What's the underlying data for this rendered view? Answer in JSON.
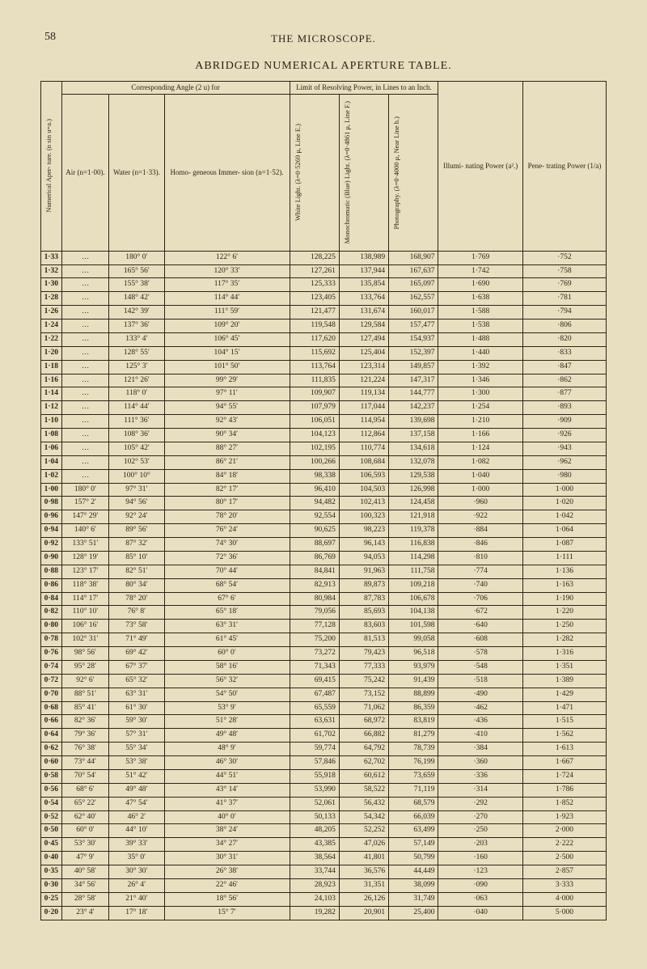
{
  "page_number": "58",
  "running_head": "THE MICROSCOPE.",
  "table_title": "ABRIDGED NUMERICAL APERTURE TABLE.",
  "headers": {
    "group_corr": "Corresponding Angle (2 u) for",
    "group_limit": "Limit of Resolving Power, in Lines to an Inch.",
    "numerical_aperture": "Numerical Aper-\nture. (n sin u=a.)",
    "air": "Air\n(n=1·00).",
    "water": "Water\n(n=1·33).",
    "homo": "Homo-\ngeneous\nImmer-\nsion\n(n=1·52).",
    "white": "White Light.\n(λ=0·5269 μ,\nLine E.)",
    "mono": "Monochromatic\n(Blue) Light.\n(λ=0·4861 μ,\nLine F.)",
    "photo": "Photography.\n(λ=0·4000 μ,\nNear Line h.)",
    "illum": "Illumi-\nnating\nPower\n(a².)",
    "pene": "Pene-\ntrating\nPower\n(1/a)"
  },
  "rows": [
    [
      "1·33",
      "…",
      "180° 0′",
      "122° 6′",
      "128,225",
      "138,989",
      "168,907",
      "1·769",
      "·752"
    ],
    [
      "1·32",
      "…",
      "165° 56′",
      "120° 33′",
      "127,261",
      "137,944",
      "167,637",
      "1·742",
      "·758"
    ],
    [
      "1·30",
      "…",
      "155° 38′",
      "117° 35′",
      "125,333",
      "135,854",
      "165,097",
      "1·690",
      "·769"
    ],
    [
      "1·28",
      "…",
      "148° 42′",
      "114° 44′",
      "123,405",
      "133,764",
      "162,557",
      "1·638",
      "·781"
    ],
    [
      "1·26",
      "…",
      "142° 39′",
      "111° 59′",
      "121,477",
      "131,674",
      "160,017",
      "1·588",
      "·794"
    ],
    [
      "1·24",
      "…",
      "137° 36′",
      "109° 20′",
      "119,548",
      "129,584",
      "157,477",
      "1·538",
      "·806"
    ],
    [
      "1·22",
      "…",
      "133° 4′",
      "106° 45′",
      "117,620",
      "127,494",
      "154,937",
      "1·488",
      "·820"
    ],
    [
      "1·20",
      "…",
      "128° 55′",
      "104° 15′",
      "115,692",
      "125,404",
      "152,397",
      "1·440",
      "·833"
    ],
    [
      "1·18",
      "…",
      "125° 3′",
      "101° 50′",
      "113,764",
      "123,314",
      "149,857",
      "1·392",
      "·847"
    ],
    [
      "1·16",
      "…",
      "121° 26′",
      "99° 29′",
      "111,835",
      "121,224",
      "147,317",
      "1·346",
      "·862"
    ],
    [
      "1·14",
      "…",
      "118° 0′",
      "97° 11′",
      "109,907",
      "119,134",
      "144,777",
      "1·300",
      "·877"
    ],
    [
      "1·12",
      "…",
      "114° 44′",
      "94° 55′",
      "107,979",
      "117,044",
      "142,237",
      "1·254",
      "·893"
    ],
    [
      "1·10",
      "…",
      "111° 36′",
      "92° 43′",
      "106,051",
      "114,954",
      "139,698",
      "1·210",
      "·909"
    ],
    [
      "1·08",
      "…",
      "108° 36′",
      "90° 34′",
      "104,123",
      "112,864",
      "137,158",
      "1·166",
      "·926"
    ],
    [
      "1·06",
      "…",
      "105° 42′",
      "88° 27′",
      "102,195",
      "110,774",
      "134,618",
      "1·124",
      "·943"
    ],
    [
      "1·04",
      "…",
      "102° 53′",
      "86° 21′",
      "100,266",
      "108,684",
      "132,078",
      "1·082",
      "·962"
    ],
    [
      "1·02",
      "…",
      "100° 10°",
      "84° 18′",
      "98,338",
      "106,593",
      "129,538",
      "1·040",
      "·980"
    ],
    [
      "1·00",
      "180° 0′",
      "97° 31′",
      "82° 17′",
      "96,410",
      "104,503",
      "126,998",
      "1·000",
      "1·000"
    ],
    [
      "0·98",
      "157° 2′",
      "94° 56′",
      "80° 17′",
      "94,482",
      "102,413",
      "124,458",
      "·960",
      "1·020"
    ],
    [
      "0·96",
      "147° 29′",
      "92° 24′",
      "78° 20′",
      "92,554",
      "100,323",
      "121,918",
      "·922",
      "1·042"
    ],
    [
      "0·94",
      "140° 6′",
      "89° 56′",
      "76° 24′",
      "90,625",
      "98,223",
      "119,378",
      "·884",
      "1·064"
    ],
    [
      "0·92",
      "133° 51′",
      "87° 32′",
      "74° 30′",
      "88,697",
      "96,143",
      "116,838",
      "·846",
      "1·087"
    ],
    [
      "0·90",
      "128° 19′",
      "85° 10′",
      "72° 36′",
      "86,769",
      "94,053",
      "114,298",
      "·810",
      "1·111"
    ],
    [
      "0·88",
      "123° 17′",
      "82° 51′",
      "70° 44′",
      "84,841",
      "91,963",
      "111,758",
      "·774",
      "1·136"
    ],
    [
      "0·86",
      "118° 38′",
      "80° 34′",
      "68° 54′",
      "82,913",
      "89,873",
      "109,218",
      "·740",
      "1·163"
    ],
    [
      "0·84",
      "114° 17′",
      "78° 20′",
      "67° 6′",
      "80,984",
      "87,783",
      "106,678",
      "·706",
      "1·190"
    ],
    [
      "0·82",
      "110° 10′",
      "76° 8′",
      "65° 18′",
      "79,056",
      "85,693",
      "104,138",
      "·672",
      "1·220"
    ],
    [
      "0·80",
      "106° 16′",
      "73° 58′",
      "63° 31′",
      "77,128",
      "83,603",
      "101,598",
      "·640",
      "1·250"
    ],
    [
      "0·78",
      "102° 31′",
      "71° 49′",
      "61° 45′",
      "75,200",
      "81,513",
      "99,058",
      "·608",
      "1·282"
    ],
    [
      "0·76",
      "98° 56′",
      "69° 42′",
      "60° 0′",
      "73,272",
      "79,423",
      "96,518",
      "·578",
      "1·316"
    ],
    [
      "0·74",
      "95° 28′",
      "67° 37′",
      "58° 16′",
      "71,343",
      "77,333",
      "93,979",
      "·548",
      "1·351"
    ],
    [
      "0·72",
      "92° 6′",
      "65° 32′",
      "56° 32′",
      "69,415",
      "75,242",
      "91,439",
      "·518",
      "1·389"
    ],
    [
      "0·70",
      "88° 51′",
      "63° 31′",
      "54° 50′",
      "67,487",
      "73,152",
      "88,899",
      "·490",
      "1·429"
    ],
    [
      "0·68",
      "85° 41′",
      "61° 30′",
      "53° 9′",
      "65,559",
      "71,062",
      "86,359",
      "·462",
      "1·471"
    ],
    [
      "0·66",
      "82° 36′",
      "59° 30′",
      "51° 28′",
      "63,631",
      "68,972",
      "83,819",
      "·436",
      "1·515"
    ],
    [
      "0·64",
      "79° 36′",
      "57° 31′",
      "49° 48′",
      "61,702",
      "66,882",
      "81,279",
      "·410",
      "1·562"
    ],
    [
      "0·62",
      "76° 38′",
      "55° 34′",
      "48° 9′",
      "59,774",
      "64,792",
      "78,739",
      "·384",
      "1·613"
    ],
    [
      "0·60",
      "73° 44′",
      "53° 38′",
      "46° 30′",
      "57,846",
      "62,702",
      "76,199",
      "·360",
      "1·667"
    ],
    [
      "0·58",
      "70° 54′",
      "51° 42′",
      "44° 51′",
      "55,918",
      "60,612",
      "73,659",
      "·336",
      "1·724"
    ],
    [
      "0·56",
      "68° 6′",
      "49° 48′",
      "43° 14′",
      "53,990",
      "58,522",
      "71,119",
      "·314",
      "1·786"
    ],
    [
      "0·54",
      "65° 22′",
      "47° 54′",
      "41° 37′",
      "52,061",
      "56,432",
      "68,579",
      "·292",
      "1·852"
    ],
    [
      "0·52",
      "62° 40′",
      "46° 2′",
      "40° 0′",
      "50,133",
      "54,342",
      "66,039",
      "·270",
      "1·923"
    ],
    [
      "0·50",
      "60° 0′",
      "44° 10′",
      "38° 24′",
      "48,205",
      "52,252",
      "63,499",
      "·250",
      "2·000"
    ],
    [
      "0·45",
      "53° 30′",
      "39° 33′",
      "34° 27′",
      "43,385",
      "47,026",
      "57,149",
      "·203",
      "2·222"
    ],
    [
      "0·40",
      "47° 9′",
      "35° 0′",
      "30° 31′",
      "38,564",
      "41,801",
      "50,799",
      "·160",
      "2·500"
    ],
    [
      "0·35",
      "40° 58′",
      "30° 30′",
      "26° 38′",
      "33,744",
      "36,576",
      "44,449",
      "·123",
      "2·857"
    ],
    [
      "0·30",
      "34° 56′",
      "26° 4′",
      "22° 46′",
      "28,923",
      "31,351",
      "38,099",
      "·090",
      "3·333"
    ],
    [
      "0·25",
      "28° 58′",
      "21° 40′",
      "18° 56′",
      "24,103",
      "26,126",
      "31,749",
      "·063",
      "4·000"
    ],
    [
      "0·20",
      "23° 4′",
      "17° 18′",
      "15° 7′",
      "19,282",
      "20,901",
      "25,400",
      "·040",
      "5·000"
    ]
  ]
}
